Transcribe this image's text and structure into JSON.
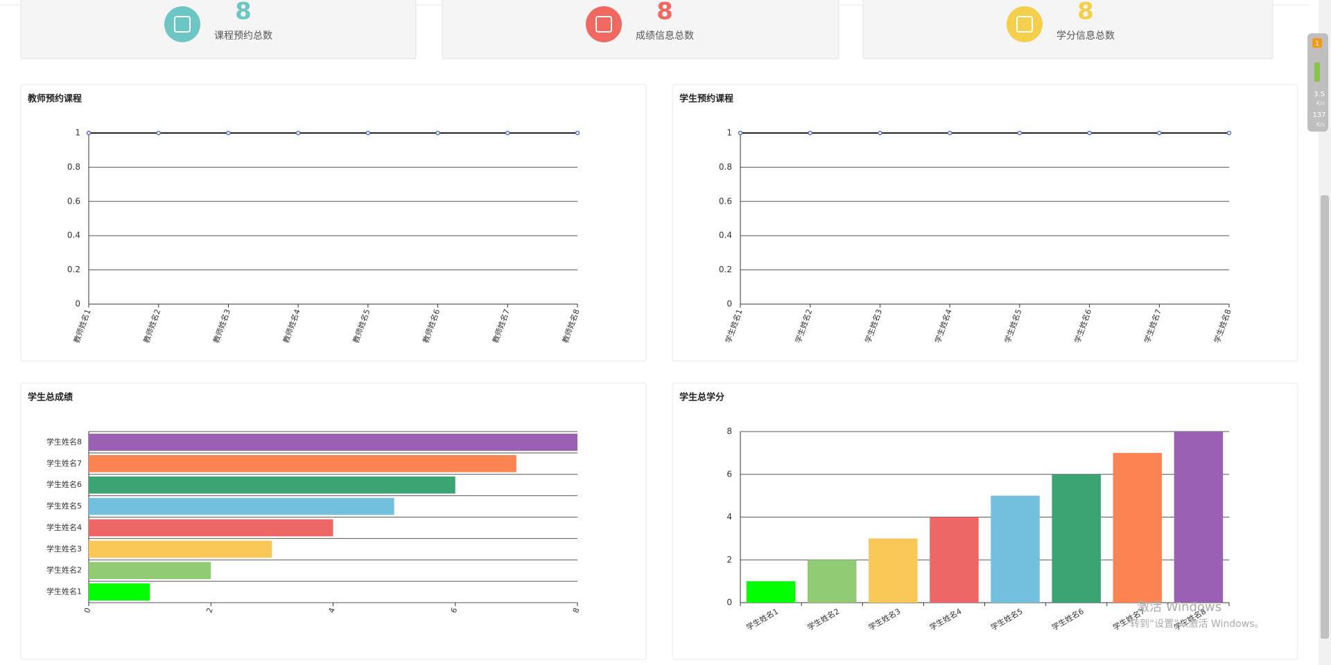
{
  "stats": [
    {
      "value": 8,
      "label": "课程预约总数",
      "color": "#6cc7c4"
    },
    {
      "value": 8,
      "label": "成绩信息总数",
      "color": "#f0685f"
    },
    {
      "value": 8,
      "label": "学分信息总数",
      "color": "#f3cf4c"
    }
  ],
  "chart_data": [
    {
      "type": "line",
      "title": "教师预约课程",
      "categories": [
        "教师姓名1",
        "教师姓名2",
        "教师姓名3",
        "教师姓名4",
        "教师姓名5",
        "教师姓名6",
        "教师姓名7",
        "教师姓名8"
      ],
      "values": [
        1,
        1,
        1,
        1,
        1,
        1,
        1,
        1
      ],
      "color": "#222222",
      "marker_color": "#5470c6",
      "ylim": [
        0,
        1
      ],
      "yticks": [
        0,
        0.2,
        0.4,
        0.6,
        0.8,
        1
      ],
      "grid": true
    },
    {
      "type": "line",
      "title": "学生预约课程",
      "categories": [
        "学生姓名1",
        "学生姓名2",
        "学生姓名3",
        "学生姓名4",
        "学生姓名5",
        "学生姓名6",
        "学生姓名7",
        "学生姓名8"
      ],
      "values": [
        1,
        1,
        1,
        1,
        1,
        1,
        1,
        1
      ],
      "color": "#222222",
      "marker_color": "#5470c6",
      "ylim": [
        0,
        1
      ],
      "yticks": [
        0,
        0.2,
        0.4,
        0.6,
        0.8,
        1
      ],
      "grid": true
    },
    {
      "type": "hbar",
      "title": "学生总成绩",
      "categories": [
        "学生姓名1",
        "学生姓名2",
        "学生姓名3",
        "学生姓名4",
        "学生姓名5",
        "学生姓名6",
        "学生姓名7",
        "学生姓名8"
      ],
      "values": [
        1,
        2,
        3,
        4,
        5,
        6,
        7,
        8
      ],
      "colors": [
        "#00ff00",
        "#91cc75",
        "#fac858",
        "#ee6666",
        "#73c0de",
        "#3ba272",
        "#fc8452",
        "#9a60b4"
      ],
      "xlim": [
        0,
        8
      ],
      "xticks": [
        0,
        2,
        4,
        6,
        8
      ],
      "grid": true
    },
    {
      "type": "bar",
      "title": "学生总学分",
      "categories": [
        "学生姓名1",
        "学生姓名2",
        "学生姓名3",
        "学生姓名4",
        "学生姓名5",
        "学生姓名6",
        "学生姓名7",
        "学生姓名8"
      ],
      "values": [
        1,
        2,
        3,
        4,
        5,
        6,
        7,
        8
      ],
      "colors": [
        "#00ff00",
        "#91cc75",
        "#fac858",
        "#ee6666",
        "#73c0de",
        "#3ba272",
        "#fc8452",
        "#9a60b4"
      ],
      "ylim": [
        0,
        8
      ],
      "yticks": [
        0,
        2,
        4,
        6,
        8
      ],
      "grid": true
    }
  ],
  "tray": {
    "badge": 1,
    "up": 3.5,
    "down": 137,
    "unit": "K/s"
  },
  "watermark": {
    "line1": "激活 Windows",
    "line2": "转到“设置”以激活 Windows。"
  }
}
